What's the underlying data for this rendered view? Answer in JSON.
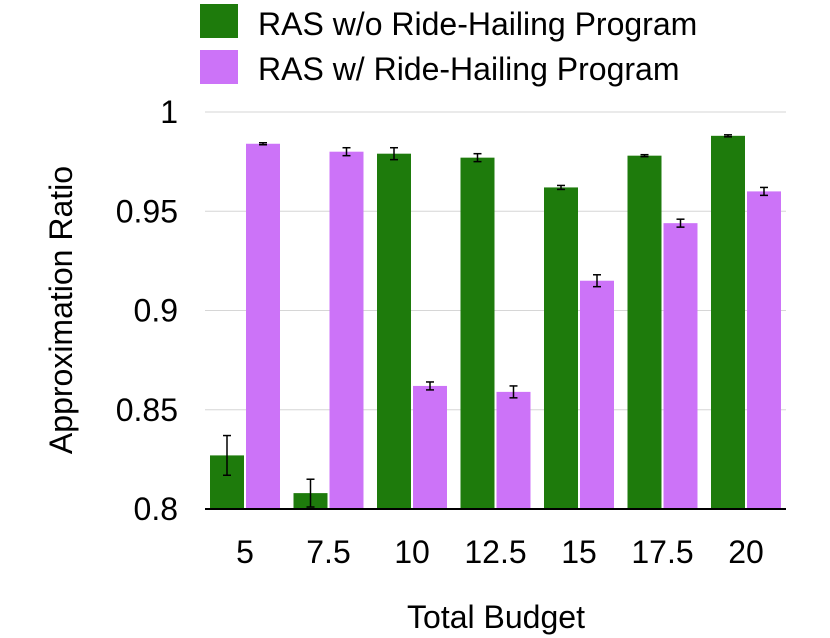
{
  "chart_data": {
    "type": "bar",
    "title": "",
    "xlabel": "Total Budget",
    "ylabel": "Approximation Ratio",
    "categories": [
      "5",
      "7.5",
      "10",
      "12.5",
      "15",
      "17.5",
      "20"
    ],
    "ylim": [
      0.8,
      1.0
    ],
    "yticks": [
      0.8,
      0.85,
      0.9,
      0.95,
      1.0
    ],
    "ytick_labels": [
      "0.8",
      "0.85",
      "0.9",
      "0.95",
      "1"
    ],
    "grid": true,
    "legend_position": "top",
    "series": [
      {
        "name": "RAS w/o Ride-Hailing Program",
        "color": "#1e7b0c",
        "values": [
          0.827,
          0.808,
          0.979,
          0.977,
          0.962,
          0.978,
          0.988
        ],
        "errors": [
          0.01,
          0.007,
          0.003,
          0.002,
          0.001,
          0.0005,
          0.0005
        ]
      },
      {
        "name": "RAS w/ Ride-Hailing Program",
        "color": "#cc73f8",
        "values": [
          0.984,
          0.98,
          0.862,
          0.859,
          0.915,
          0.944,
          0.96
        ],
        "errors": [
          0.0005,
          0.002,
          0.002,
          0.003,
          0.003,
          0.002,
          0.002
        ]
      }
    ]
  }
}
